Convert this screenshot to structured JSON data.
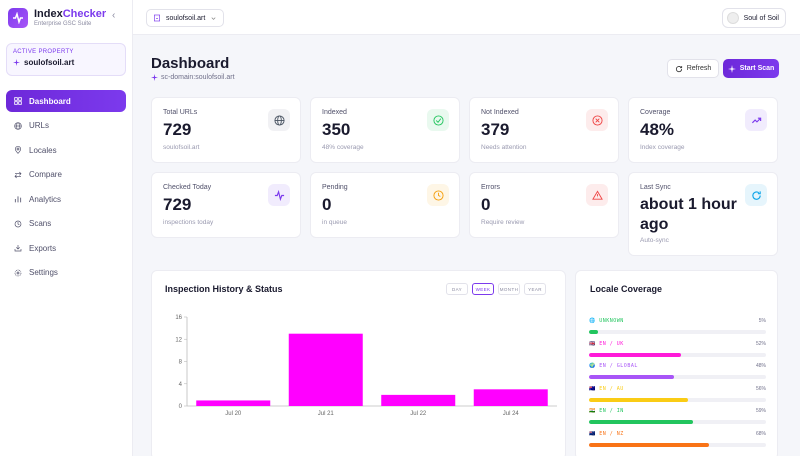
{
  "brand": {
    "name_a": "Index",
    "name_b": "Checker",
    "sub": "Enterprise GSC Suite"
  },
  "sidebar": {
    "active_property_label": "ACTIVE PROPERTY",
    "active_property_value": "soulofsoil.art",
    "items": [
      {
        "label": "Dashboard",
        "icon": "grid-icon"
      },
      {
        "label": "URLs",
        "icon": "globe-icon"
      },
      {
        "label": "Locales",
        "icon": "pin-icon"
      },
      {
        "label": "Compare",
        "icon": "compare-icon"
      },
      {
        "label": "Analytics",
        "icon": "bar-chart-icon"
      },
      {
        "label": "Scans",
        "icon": "scan-icon"
      },
      {
        "label": "Exports",
        "icon": "download-icon"
      },
      {
        "label": "Settings",
        "icon": "gear-icon"
      }
    ]
  },
  "topbar": {
    "property": "soulofsoil.art",
    "user": "Soul of Soil"
  },
  "header": {
    "title": "Dashboard",
    "subtitle": "sc-domain:soulofsoil.art",
    "refresh": "Refresh",
    "start_scan": "Start Scan"
  },
  "cards": [
    {
      "label": "Total URLs",
      "value": "729",
      "sub": "soulofsoil.art",
      "icon": "globe-icon",
      "color": "#6b7280"
    },
    {
      "label": "Indexed",
      "value": "350",
      "sub": "48% coverage",
      "icon": "check-circle-icon",
      "color": "#22c55e"
    },
    {
      "label": "Not Indexed",
      "value": "379",
      "sub": "Needs attention",
      "icon": "x-circle-icon",
      "color": "#ef4444"
    },
    {
      "label": "Coverage",
      "value": "48%",
      "sub": "Index coverage",
      "icon": "trend-up-icon",
      "color": "#7c3aed"
    },
    {
      "label": "Checked Today",
      "value": "729",
      "sub": "inspections today",
      "icon": "activity-icon",
      "color": "#7c3aed"
    },
    {
      "label": "Pending",
      "value": "0",
      "sub": "in queue",
      "icon": "clock-icon",
      "color": "#f59e0b"
    },
    {
      "label": "Errors",
      "value": "0",
      "sub": "Require review",
      "icon": "warning-icon",
      "color": "#ef4444"
    },
    {
      "label": "Last Sync",
      "value": "about 1 hour ago",
      "sub": "Auto-sync",
      "icon": "refresh-icon",
      "color": "#0ea5e9"
    }
  ],
  "history": {
    "title": "Inspection History & Status",
    "tabs": [
      "DAY",
      "WEEK",
      "MONTH",
      "YEAR"
    ],
    "active_tab": "WEEK"
  },
  "chart_data": {
    "type": "bar",
    "categories": [
      "Jul 20",
      "Jul 21",
      "Jul 22",
      "Jul 24"
    ],
    "values": [
      1,
      13,
      2,
      3
    ],
    "yticks": [
      0,
      4,
      8,
      12,
      16
    ],
    "ylim": [
      0,
      16
    ],
    "color": "#ff00ff",
    "grid": false
  },
  "locales": {
    "title": "Locale Coverage",
    "rows": [
      {
        "name": "UNKNOWN",
        "pct": "5%",
        "value": 5,
        "color": "#22c55e",
        "flag": "🌐"
      },
      {
        "name": "EN / UK",
        "pct": "52%",
        "value": 52,
        "color": "#ff1ad9",
        "flag": "🇬🇧"
      },
      {
        "name": "EN / GLOBAL",
        "pct": "48%",
        "value": 48,
        "color": "#a855f7",
        "flag": "🌍"
      },
      {
        "name": "EN / AU",
        "pct": "56%",
        "value": 56,
        "color": "#facc15",
        "flag": "🇦🇺"
      },
      {
        "name": "EN / IN",
        "pct": "59%",
        "value": 59,
        "color": "#22c55e",
        "flag": "🇮🇳"
      },
      {
        "name": "EN / NZ",
        "pct": "68%",
        "value": 68,
        "color": "#f97316",
        "flag": "🇳🇿"
      }
    ]
  }
}
